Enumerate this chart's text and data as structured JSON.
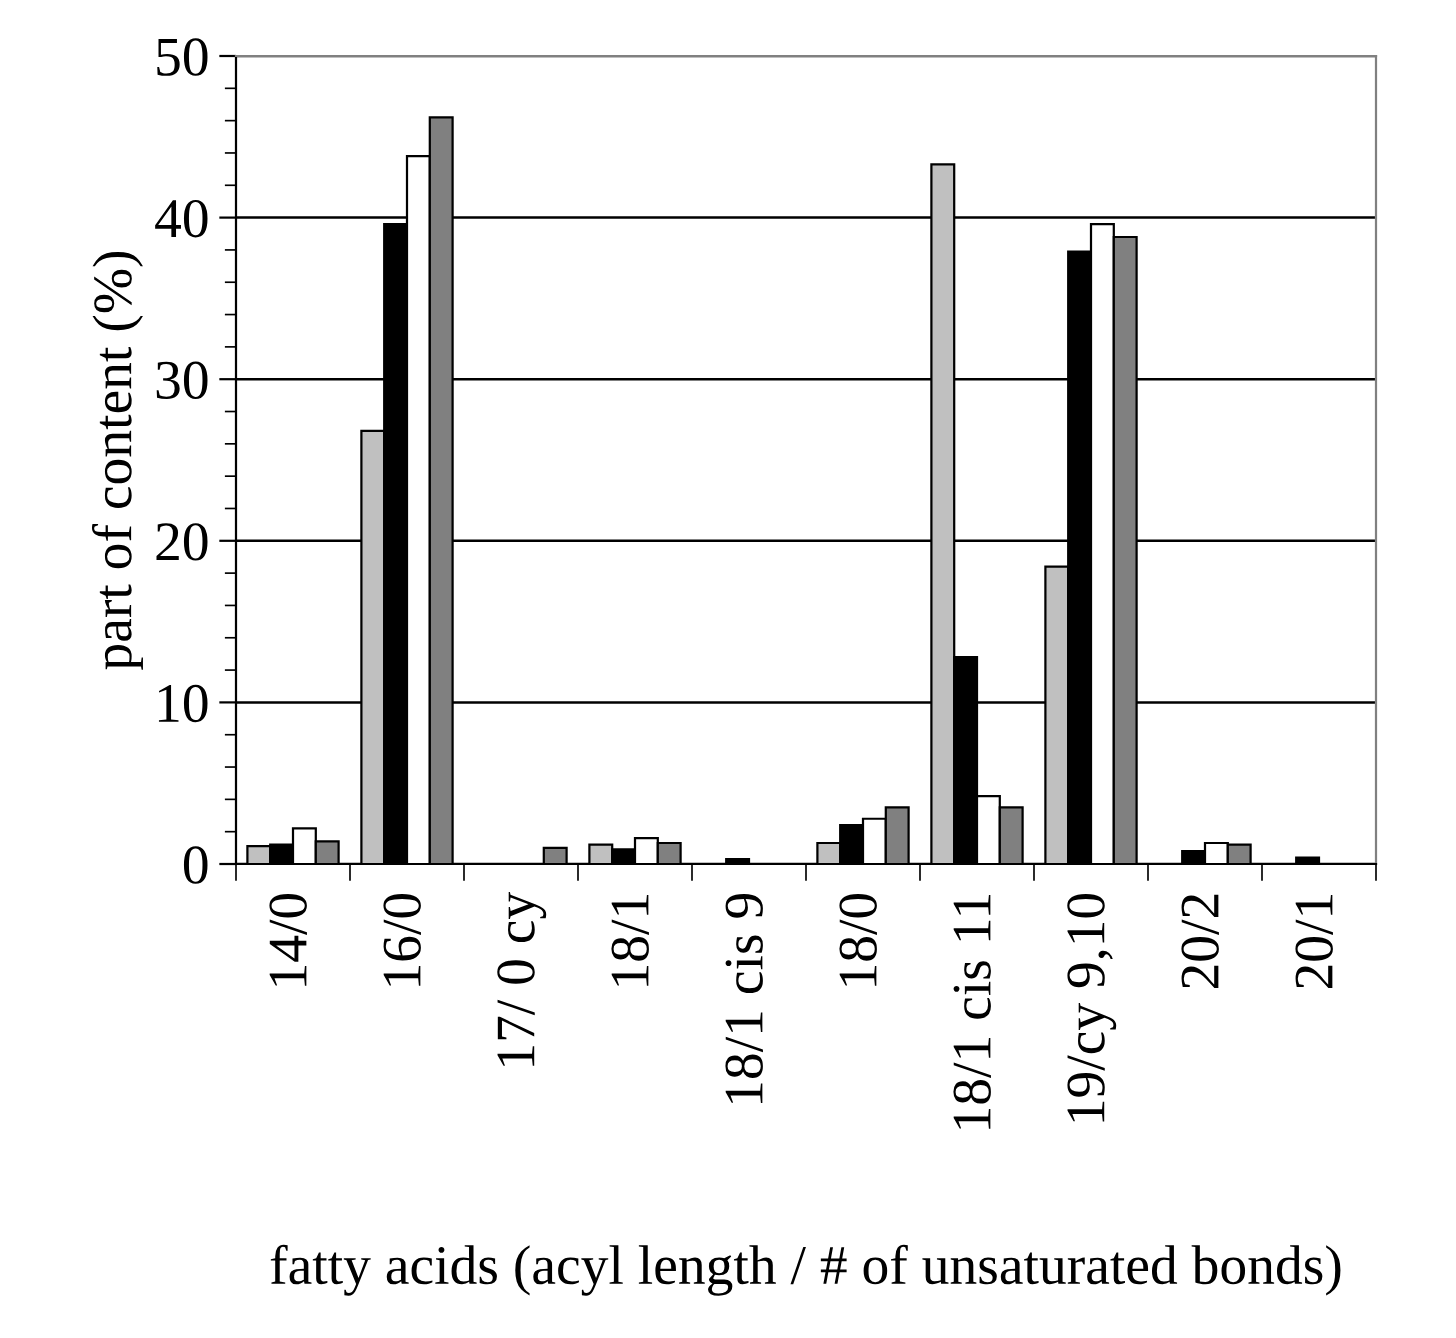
{
  "chart_data": {
    "type": "bar",
    "xlabel": "fatty acids (acyl length / # of unsaturated bonds)",
    "ylabel": "part of content (%)",
    "categories": [
      "14/0",
      "16/0",
      "17/ 0 cy",
      "18/1",
      "18/1 cis 9",
      "18/0",
      "18/1 cis 11",
      "19/cy 9,10",
      "20/2",
      "20/1"
    ],
    "series": [
      {
        "color": "#c0c0c0",
        "values": [
          1.1,
          26.8,
          null,
          1.2,
          null,
          1.3,
          43.3,
          18.4,
          null,
          null
        ]
      },
      {
        "color": "#000000",
        "values": [
          1.2,
          39.6,
          null,
          0.9,
          0.3,
          2.4,
          12.8,
          37.9,
          0.8,
          0.4
        ]
      },
      {
        "color": "#ffffff",
        "values": [
          2.2,
          43.8,
          null,
          1.6,
          null,
          2.8,
          4.2,
          39.6,
          1.3,
          null
        ]
      },
      {
        "color": "#808080",
        "values": [
          1.4,
          46.2,
          1.0,
          1.3,
          null,
          3.5,
          3.5,
          38.8,
          1.2,
          null
        ]
      }
    ],
    "ylim": [
      0,
      50
    ],
    "yticks": [
      0,
      10,
      20,
      30,
      40,
      50
    ],
    "grid": "y",
    "legend": false
  }
}
